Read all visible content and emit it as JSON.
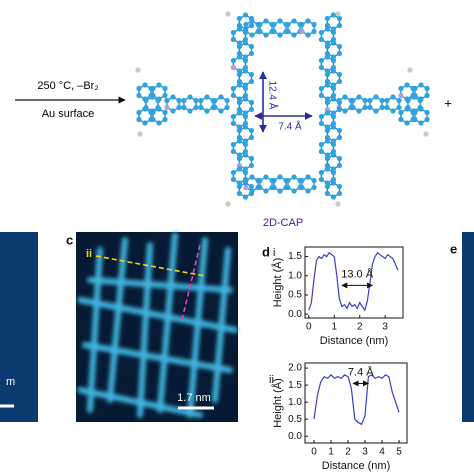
{
  "scheme": {
    "conditions": "250 °C, –Br₂",
    "substrate": "Au surface",
    "length_long": "12.4 Å",
    "length_short": "7.4 Å",
    "product": "2D-CAP",
    "plus": "+"
  },
  "panel_labels": {
    "c": "c",
    "d": "d",
    "e": "e"
  },
  "stm": {
    "marker": "ii",
    "scale_bar": "1.7 nm"
  },
  "left_fragment": "m",
  "chart_data": [
    {
      "type": "line",
      "panel_label": "i",
      "xlabel": "Distance (nm)",
      "ylabel": "Height (Å)",
      "annotation": "13.0 Å",
      "x": [
        0,
        0.1,
        0.2,
        0.3,
        0.4,
        0.5,
        0.6,
        0.7,
        0.8,
        0.9,
        1.0,
        1.1,
        1.2,
        1.3,
        1.4,
        1.5,
        1.6,
        1.7,
        1.8,
        1.9,
        2.0,
        2.1,
        2.2,
        2.3,
        2.4,
        2.5,
        2.6,
        2.7,
        2.8,
        2.9,
        3.0,
        3.1,
        3.2,
        3.3,
        3.4,
        3.5
      ],
      "series": [
        {
          "color": "#3b3fc4",
          "values": [
            0.1,
            0.3,
            0.9,
            1.4,
            1.5,
            1.45,
            1.55,
            1.5,
            1.6,
            1.55,
            1.5,
            1.0,
            0.4,
            0.2,
            0.25,
            0.15,
            0.3,
            0.2,
            0.25,
            0.15,
            0.3,
            0.2,
            0.1,
            0.35,
            0.8,
            1.3,
            1.5,
            1.6,
            1.55,
            1.5,
            1.45,
            1.55,
            1.5,
            1.45,
            1.3,
            1.15
          ]
        }
      ],
      "xlim": [
        -0.15,
        3.7
      ],
      "xticks": [
        0,
        1,
        2,
        3
      ],
      "ylim": [
        -0.1,
        1.75
      ],
      "yticks": [
        {
          "value": 0,
          "label": "0.0"
        },
        0.5,
        {
          "value": 1,
          "label": "1.0"
        },
        1.5
      ]
    },
    {
      "type": "line",
      "panel_label": "ii",
      "xlabel": "Distance (nm)",
      "ylabel": "Height (Å)",
      "annotation": "7.4 Å",
      "x": [
        0,
        0.2,
        0.4,
        0.6,
        0.8,
        1.0,
        1.2,
        1.4,
        1.6,
        1.8,
        2.0,
        2.2,
        2.4,
        2.6,
        2.8,
        3.0,
        3.2,
        3.4,
        3.6,
        3.8,
        4.0,
        4.2,
        4.4,
        4.6,
        4.8,
        5.0
      ],
      "series": [
        {
          "color": "#3b3fc4",
          "values": [
            0.5,
            1.2,
            1.6,
            1.75,
            1.7,
            1.8,
            1.7,
            1.75,
            1.7,
            1.8,
            1.75,
            1.4,
            0.5,
            0.4,
            0.35,
            0.6,
            1.75,
            1.8,
            1.7,
            1.75,
            1.7,
            1.8,
            1.75,
            1.3,
            1.0,
            0.7
          ]
        }
      ],
      "xlim": [
        -0.53,
        5.47
      ],
      "xticks": [
        0,
        1,
        2,
        3,
        4,
        5
      ],
      "ylim": [
        -0.2,
        2.15
      ],
      "yticks": [
        {
          "value": 0,
          "label": "0.0"
        },
        0.5,
        {
          "value": 1,
          "label": "1.0"
        },
        1.5,
        {
          "value": 2,
          "label": "2.0"
        }
      ]
    }
  ]
}
